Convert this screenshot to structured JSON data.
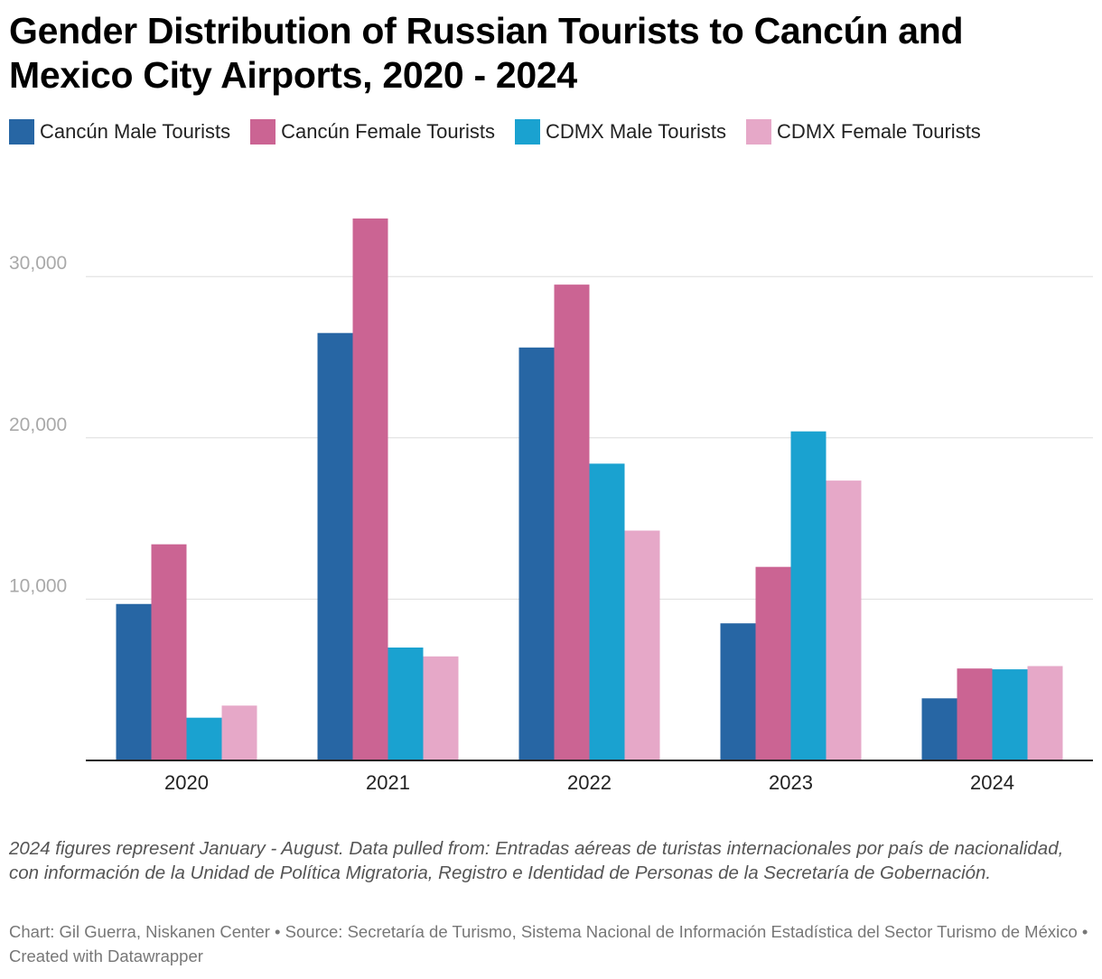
{
  "title": "Gender Distribution of Russian Tourists to Cancún and Mexico City Airports, 2020 - 2024",
  "notes": "2024 figures represent January - August. Data pulled from: Entradas aéreas de turistas internacionales por país de nacionalidad, con información de la Unidad de Política Migratoria, Registro e Identidad de Personas de la Secretaría de Gobernación.",
  "credits": "Chart: Gil Guerra, Niskanen Center • Source: Secretaría de Turismo, Sistema Nacional de Información Estadística del Sector Turismo de México • Created with Datawrapper",
  "colors": {
    "cancun_male": "#2766a4",
    "cancun_female": "#cb6493",
    "cdmx_male": "#1aa2d0",
    "cdmx_female": "#e6a8c8",
    "grid": "#dddddd",
    "axis": "#222222",
    "tick_label_y": "#a9a9a9"
  },
  "chart_data": {
    "type": "bar",
    "title": "Gender Distribution of Russian Tourists to Cancún and Mexico City Airports, 2020 - 2024",
    "xlabel": "",
    "ylabel": "",
    "categories": [
      "2020",
      "2021",
      "2022",
      "2023",
      "2024"
    ],
    "series": [
      {
        "name": "Cancún Male Tourists",
        "color": "#2766a4",
        "values": [
          9700,
          26500,
          25600,
          8500,
          3850
        ]
      },
      {
        "name": "Cancún Female Tourists",
        "color": "#cb6493",
        "values": [
          13400,
          33600,
          29500,
          12000,
          5700
        ]
      },
      {
        "name": "CDMX Male Tourists",
        "color": "#1aa2d0",
        "values": [
          2650,
          7000,
          18400,
          20400,
          5650
        ]
      },
      {
        "name": "CDMX Female Tourists",
        "color": "#e6a8c8",
        "values": [
          3400,
          6450,
          14250,
          17350,
          5850
        ]
      }
    ],
    "ylim": [
      0,
      35000
    ],
    "yticks": [
      10000,
      20000,
      30000
    ],
    "ytick_labels": [
      "10,000",
      "20,000",
      "30,000"
    ],
    "grid": true,
    "legend_position": "top-left"
  }
}
